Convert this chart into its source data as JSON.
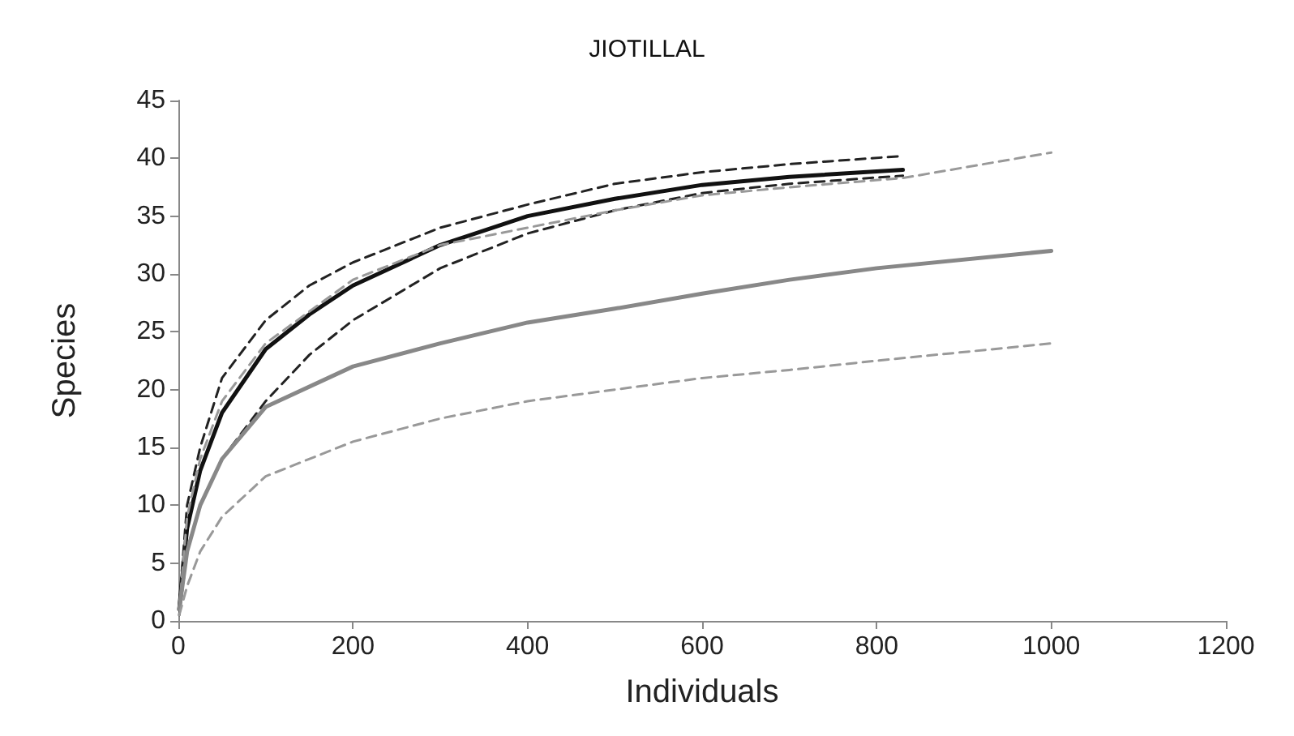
{
  "chart_data": {
    "type": "line",
    "title": "JIOTILLAL",
    "xlabel": "Individuals",
    "ylabel": "Species",
    "xlim": [
      0,
      1200
    ],
    "xticks": [
      0,
      200,
      400,
      600,
      800,
      1000,
      1200
    ],
    "ylim": [
      0,
      45
    ],
    "yticks": [
      0,
      5,
      10,
      15,
      20,
      25,
      30,
      35,
      40,
      45
    ],
    "grid": false,
    "marker": "none",
    "series": [
      {
        "color": "#111111",
        "line_style": "solid",
        "x": [
          1,
          10,
          25,
          50,
          100,
          150,
          200,
          300,
          400,
          500,
          600,
          700,
          830
        ],
        "values": [
          1,
          8,
          13,
          18,
          23.5,
          26.5,
          29,
          32.5,
          35,
          36.5,
          37.7,
          38.4,
          39
        ]
      },
      {
        "color": "#222222",
        "line_style": "dashed",
        "x": [
          1,
          10,
          25,
          50,
          100,
          150,
          200,
          300,
          400,
          500,
          600,
          700,
          830
        ],
        "values": [
          1.5,
          10,
          15,
          21,
          26,
          29,
          31,
          34,
          36,
          37.8,
          38.8,
          39.5,
          40.2
        ]
      },
      {
        "color": "#222222",
        "line_style": "dashed",
        "x": [
          1,
          10,
          25,
          50,
          100,
          150,
          200,
          300,
          400,
          500,
          600,
          700,
          830
        ],
        "values": [
          0.5,
          6,
          10,
          14,
          19,
          23,
          26,
          30.5,
          33.5,
          35.5,
          37,
          37.8,
          38.5
        ]
      },
      {
        "color": "#999999",
        "line_style": "dashed",
        "x": [
          1,
          10,
          25,
          50,
          100,
          200,
          300,
          400,
          500,
          600,
          700,
          830,
          1000
        ],
        "values": [
          1,
          9,
          14,
          19,
          24,
          29.5,
          32.5,
          34,
          35.5,
          36.8,
          37.5,
          38.3,
          40.5
        ]
      },
      {
        "color": "#888888",
        "line_style": "solid",
        "x": [
          1,
          10,
          25,
          50,
          100,
          200,
          300,
          400,
          500,
          600,
          700,
          800,
          1000
        ],
        "values": [
          1,
          6,
          10,
          14,
          18.5,
          22,
          24,
          25.8,
          27,
          28.3,
          29.5,
          30.5,
          32
        ]
      },
      {
        "color": "#999999",
        "line_style": "dashed",
        "x": [
          1,
          10,
          25,
          50,
          100,
          200,
          300,
          400,
          500,
          600,
          700,
          800,
          1000
        ],
        "values": [
          0.5,
          3,
          6,
          9,
          12.5,
          15.5,
          17.5,
          19,
          20,
          21,
          21.7,
          22.5,
          24
        ]
      }
    ]
  }
}
